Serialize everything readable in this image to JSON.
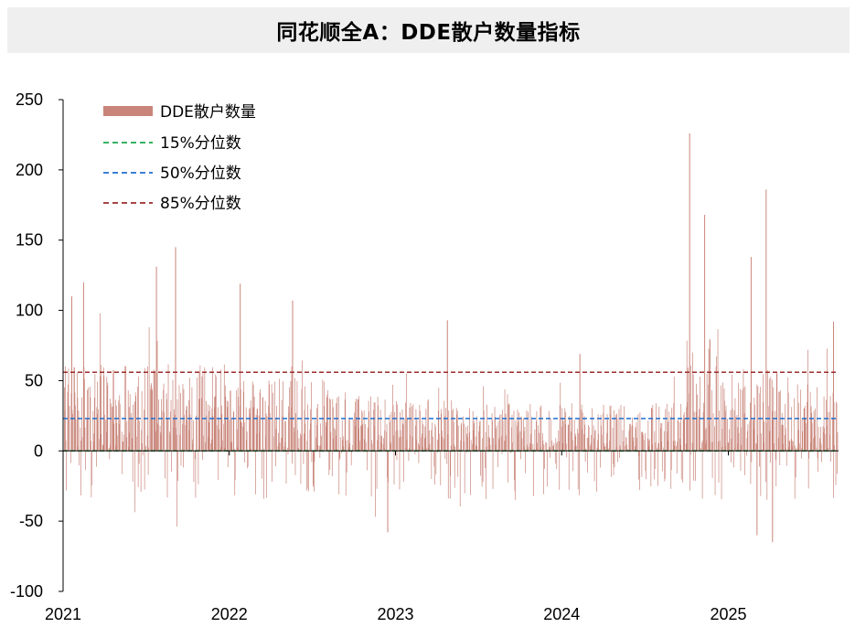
{
  "title": "同花顺全A：DDE散户数量指标",
  "chart_data": {
    "type": "bar",
    "title": "同花顺全A：DDE散户数量指标",
    "xlabel": "",
    "ylabel": "",
    "ylim": [
      -100,
      250
    ],
    "yticks": [
      "250",
      "200",
      "150",
      "100",
      "50",
      "0",
      "-50",
      "-100"
    ],
    "ytick_values": [
      250,
      200,
      150,
      100,
      50,
      0,
      -50,
      -100
    ],
    "x_range": [
      "2021-01-01",
      "2025-08-31"
    ],
    "xticks": [
      "2021",
      "2022",
      "2023",
      "2024",
      "2025"
    ],
    "grid": false,
    "legend_position": "top-left",
    "series": [
      {
        "name": "DDE散户数量",
        "kind": "bar",
        "color": "#c9857a",
        "description_values": "daily values, mostly between -40 and 110; peaks ~145 (2021-09), ~226 (2024-10), ~186 (2025-03); troughs ~-58 (2022-12), ~-65 (2025-04)"
      },
      {
        "name": "15%分位数",
        "kind": "line",
        "style": "dashed",
        "color": "#1aa64a",
        "value": 0
      },
      {
        "name": "50%分位数",
        "kind": "line",
        "style": "dashed",
        "color": "#1f6fd1",
        "value": 23
      },
      {
        "name": "85%分位数",
        "kind": "line",
        "style": "dashed",
        "color": "#9b2d2d",
        "value": 56
      }
    ],
    "notable_points": [
      {
        "x": "2021-01-20",
        "y": 110
      },
      {
        "x": "2021-02-15",
        "y": 120
      },
      {
        "x": "2021-07-25",
        "y": 131
      },
      {
        "x": "2021-09-05",
        "y": 145
      },
      {
        "x": "2022-01-25",
        "y": 119
      },
      {
        "x": "2022-05-20",
        "y": 107
      },
      {
        "x": "2022-12-15",
        "y": -58
      },
      {
        "x": "2023-04-25",
        "y": 93
      },
      {
        "x": "2024-02-10",
        "y": 69
      },
      {
        "x": "2024-10-08",
        "y": 226
      },
      {
        "x": "2024-11-10",
        "y": 168
      },
      {
        "x": "2025-02-20",
        "y": 138
      },
      {
        "x": "2025-03-05",
        "y": -60
      },
      {
        "x": "2025-03-25",
        "y": 186
      },
      {
        "x": "2025-04-08",
        "y": -65
      },
      {
        "x": "2025-08-20",
        "y": 92
      }
    ]
  }
}
